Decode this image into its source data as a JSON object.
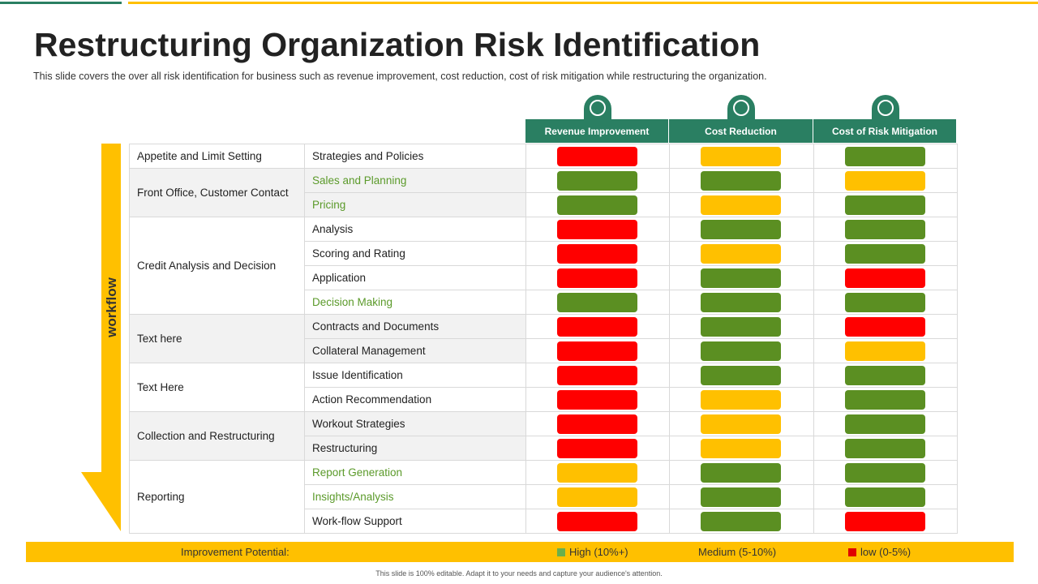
{
  "header": {
    "title": "Restructuring Organization Risk Identification",
    "subtitle": "This slide covers the over all risk identification for business such as revenue improvement, cost reduction, cost of risk mitigation while restructuring the organization."
  },
  "workflow_label": "workflow",
  "table": {
    "columns": [
      "Revenue Improvement",
      "Cost Reduction",
      "Cost of Risk Mitigation"
    ],
    "groups": [
      {
        "label": "Appetite and Limit Setting",
        "items": [
          {
            "label": "Strategies and Policies",
            "ratings": [
              "#ff0000",
              "#ffc000",
              "#5b8f22"
            ]
          }
        ]
      },
      {
        "label": "Front Office, Customer Contact",
        "items": [
          {
            "label": "Sales and Planning",
            "color": "#5b9a2a",
            "ratings": [
              "#5b8f22",
              "#5b8f22",
              "#ffc000"
            ]
          },
          {
            "label": "Pricing",
            "color": "#5b9a2a",
            "ratings": [
              "#5b8f22",
              "#ffc000",
              "#5b8f22"
            ]
          }
        ]
      },
      {
        "label": "Credit Analysis and Decision",
        "items": [
          {
            "label": "Analysis",
            "ratings": [
              "#ff0000",
              "#5b8f22",
              "#5b8f22"
            ]
          },
          {
            "label": "Scoring and Rating",
            "ratings": [
              "#ff0000",
              "#ffc000",
              "#5b8f22"
            ]
          },
          {
            "label": "Application",
            "ratings": [
              "#ff0000",
              "#5b8f22",
              "#ff0000"
            ]
          },
          {
            "label": "Decision Making",
            "color": "#5b9a2a",
            "ratings": [
              "#5b8f22",
              "#5b8f22",
              "#5b8f22"
            ]
          }
        ]
      },
      {
        "label": "Text here",
        "items": [
          {
            "label": "Contracts and Documents",
            "ratings": [
              "#ff0000",
              "#5b8f22",
              "#ff0000"
            ]
          },
          {
            "label": "Collateral Management",
            "ratings": [
              "#ff0000",
              "#5b8f22",
              "#ffc000"
            ]
          }
        ]
      },
      {
        "label": "Text Here",
        "items": [
          {
            "label": "Issue Identification",
            "ratings": [
              "#ff0000",
              "#5b8f22",
              "#5b8f22"
            ]
          },
          {
            "label": "Action Recommendation",
            "ratings": [
              "#ff0000",
              "#ffc000",
              "#5b8f22"
            ]
          }
        ]
      },
      {
        "label": "Collection and Restructuring",
        "items": [
          {
            "label": "Workout Strategies",
            "ratings": [
              "#ff0000",
              "#ffc000",
              "#5b8f22"
            ]
          },
          {
            "label": "Restructuring",
            "ratings": [
              "#ff0000",
              "#ffc000",
              "#5b8f22"
            ]
          }
        ]
      },
      {
        "label": "Reporting",
        "items": [
          {
            "label": "Report Generation",
            "color": "#5b9a2a",
            "ratings": [
              "#ffc000",
              "#5b8f22",
              "#5b8f22"
            ]
          },
          {
            "label": "Insights/Analysis",
            "color": "#5b9a2a",
            "ratings": [
              "#ffc000",
              "#5b8f22",
              "#5b8f22"
            ]
          },
          {
            "label": "Work-flow Support",
            "ratings": [
              "#ff0000",
              "#5b8f22",
              "#ff0000"
            ]
          }
        ]
      }
    ]
  },
  "legend": {
    "title": "Improvement Potential:",
    "items": [
      {
        "label": "High (10%+)",
        "color": "#6ab04c"
      },
      {
        "label": "Medium (5-10%)",
        "color": "#ffc000"
      },
      {
        "label": "low (0-5%)",
        "color": "#e00000"
      }
    ]
  },
  "footer": "This slide is 100% editable. Adapt it to your needs and capture your audience's attention."
}
